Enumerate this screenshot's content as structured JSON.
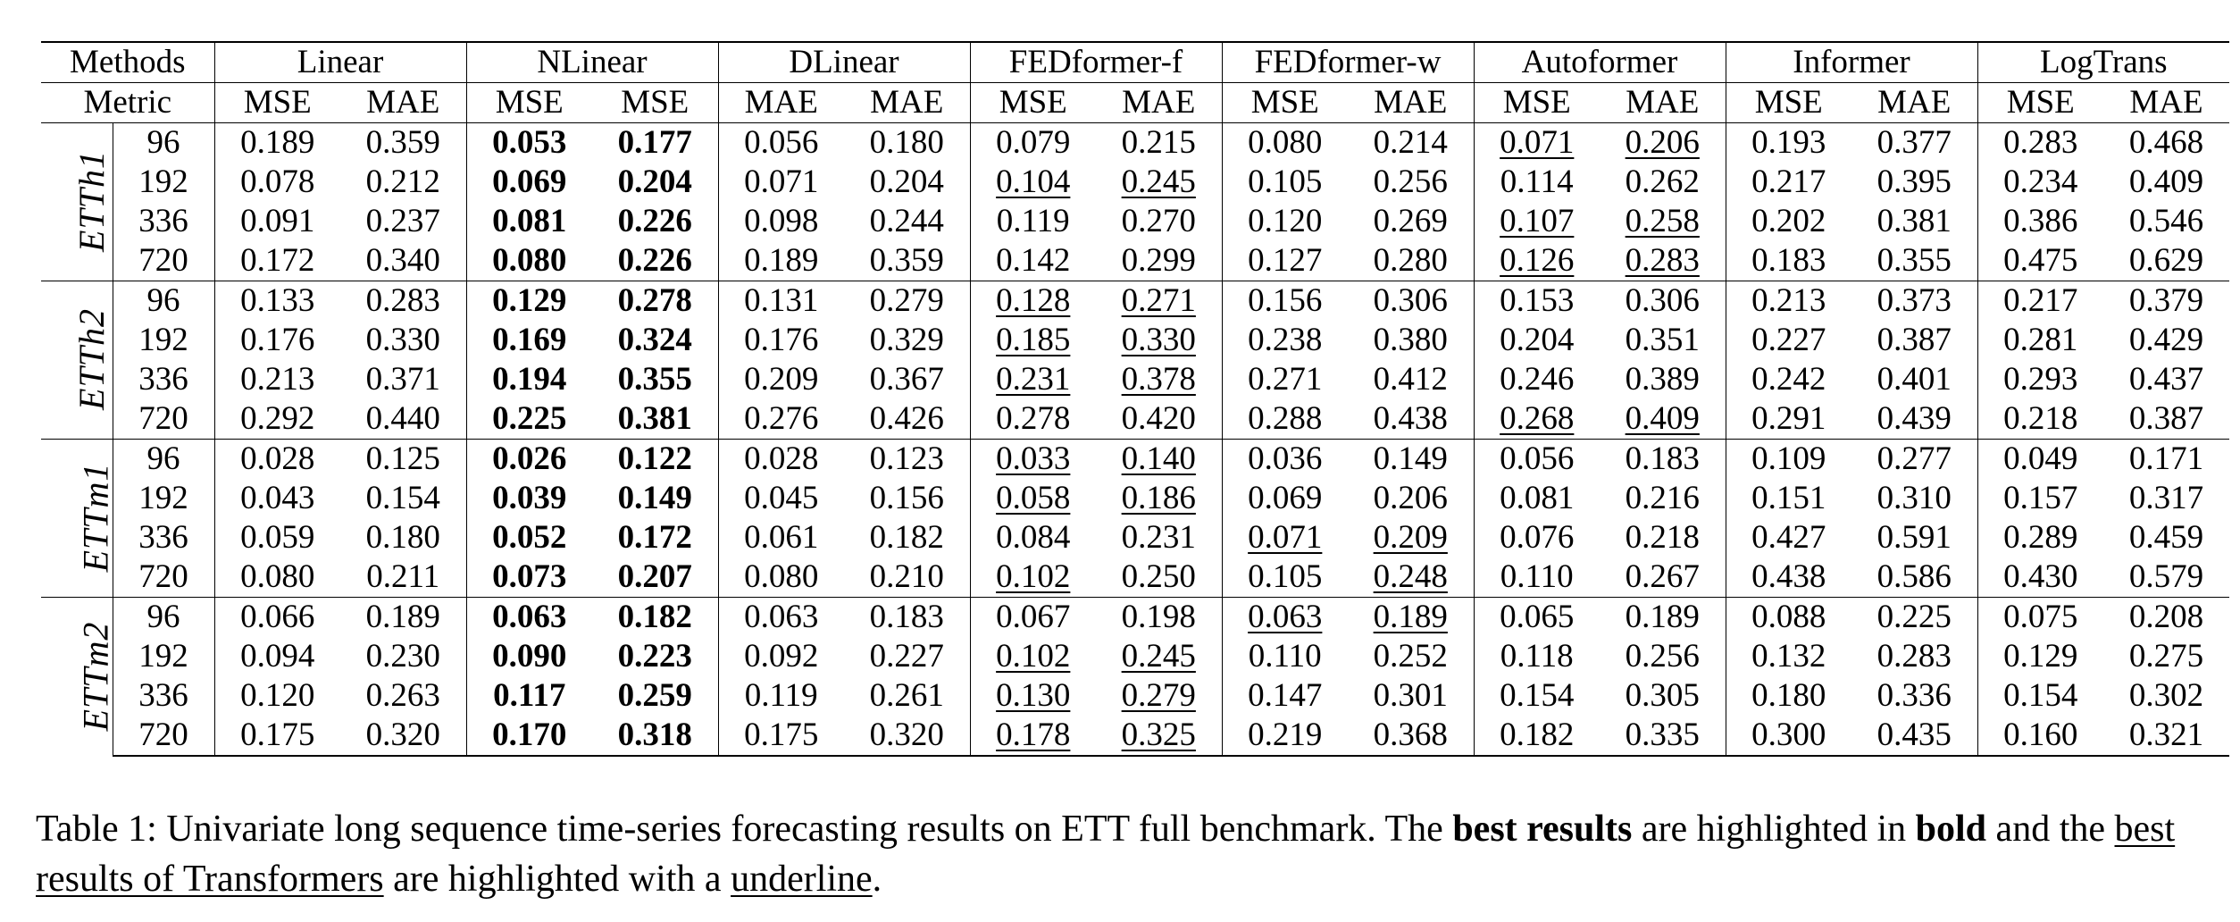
{
  "table": {
    "header": [
      "Methods",
      "Linear",
      "NLinear",
      "DLinear",
      "FEDformer-f",
      "FEDformer-w",
      "Autoformer",
      "Informer",
      "LogTrans"
    ],
    "metric_label": "Metric",
    "metrics": [
      "MSE",
      "MAE",
      "MSE",
      "MSE",
      "MAE",
      "MAE",
      "MSE",
      "MAE",
      "MSE",
      "MAE",
      "MSE",
      "MAE",
      "MSE",
      "MAE",
      "MSE",
      "MAE"
    ],
    "bold_columns": [
      2,
      3
    ],
    "groups": [
      {
        "name": "ETTh1",
        "rows": [
          {
            "horizon": "96",
            "values": [
              "0.189",
              "0.359",
              "0.053",
              "0.177",
              "0.056",
              "0.180",
              "0.079",
              "0.215",
              "0.080",
              "0.214",
              "0.071",
              "0.206",
              "0.193",
              "0.377",
              "0.283",
              "0.468"
            ],
            "underlined": [
              10,
              11
            ]
          },
          {
            "horizon": "192",
            "values": [
              "0.078",
              "0.212",
              "0.069",
              "0.204",
              "0.071",
              "0.204",
              "0.104",
              "0.245",
              "0.105",
              "0.256",
              "0.114",
              "0.262",
              "0.217",
              "0.395",
              "0.234",
              "0.409"
            ],
            "underlined": [
              6,
              7
            ]
          },
          {
            "horizon": "336",
            "values": [
              "0.091",
              "0.237",
              "0.081",
              "0.226",
              "0.098",
              "0.244",
              "0.119",
              "0.270",
              "0.120",
              "0.269",
              "0.107",
              "0.258",
              "0.202",
              "0.381",
              "0.386",
              "0.546"
            ],
            "underlined": [
              10,
              11
            ]
          },
          {
            "horizon": "720",
            "values": [
              "0.172",
              "0.340",
              "0.080",
              "0.226",
              "0.189",
              "0.359",
              "0.142",
              "0.299",
              "0.127",
              "0.280",
              "0.126",
              "0.283",
              "0.183",
              "0.355",
              "0.475",
              "0.629"
            ],
            "underlined": [
              10,
              11
            ]
          }
        ]
      },
      {
        "name": "ETTh2",
        "rows": [
          {
            "horizon": "96",
            "values": [
              "0.133",
              "0.283",
              "0.129",
              "0.278",
              "0.131",
              "0.279",
              "0.128",
              "0.271",
              "0.156",
              "0.306",
              "0.153",
              "0.306",
              "0.213",
              "0.373",
              "0.217",
              "0.379"
            ],
            "underlined": [
              6,
              7
            ]
          },
          {
            "horizon": "192",
            "values": [
              "0.176",
              "0.330",
              "0.169",
              "0.324",
              "0.176",
              "0.329",
              "0.185",
              "0.330",
              "0.238",
              "0.380",
              "0.204",
              "0.351",
              "0.227",
              "0.387",
              "0.281",
              "0.429"
            ],
            "underlined": [
              6,
              7
            ]
          },
          {
            "horizon": "336",
            "values": [
              "0.213",
              "0.371",
              "0.194",
              "0.355",
              "0.209",
              "0.367",
              "0.231",
              "0.378",
              "0.271",
              "0.412",
              "0.246",
              "0.389",
              "0.242",
              "0.401",
              "0.293",
              "0.437"
            ],
            "underlined": [
              6,
              7
            ]
          },
          {
            "horizon": "720",
            "values": [
              "0.292",
              "0.440",
              "0.225",
              "0.381",
              "0.276",
              "0.426",
              "0.278",
              "0.420",
              "0.288",
              "0.438",
              "0.268",
              "0.409",
              "0.291",
              "0.439",
              "0.218",
              "0.387"
            ],
            "underlined": [
              10,
              11
            ]
          }
        ]
      },
      {
        "name": "ETTm1",
        "rows": [
          {
            "horizon": "96",
            "values": [
              "0.028",
              "0.125",
              "0.026",
              "0.122",
              "0.028",
              "0.123",
              "0.033",
              "0.140",
              "0.036",
              "0.149",
              "0.056",
              "0.183",
              "0.109",
              "0.277",
              "0.049",
              "0.171"
            ],
            "underlined": [
              6,
              7
            ]
          },
          {
            "horizon": "192",
            "values": [
              "0.043",
              "0.154",
              "0.039",
              "0.149",
              "0.045",
              "0.156",
              "0.058",
              "0.186",
              "0.069",
              "0.206",
              "0.081",
              "0.216",
              "0.151",
              "0.310",
              "0.157",
              "0.317"
            ],
            "underlined": [
              6,
              7
            ]
          },
          {
            "horizon": "336",
            "values": [
              "0.059",
              "0.180",
              "0.052",
              "0.172",
              "0.061",
              "0.182",
              "0.084",
              "0.231",
              "0.071",
              "0.209",
              "0.076",
              "0.218",
              "0.427",
              "0.591",
              "0.289",
              "0.459"
            ],
            "underlined": [
              8,
              9
            ]
          },
          {
            "horizon": "720",
            "values": [
              "0.080",
              "0.211",
              "0.073",
              "0.207",
              "0.080",
              "0.210",
              "0.102",
              "0.250",
              "0.105",
              "0.248",
              "0.110",
              "0.267",
              "0.438",
              "0.586",
              "0.430",
              "0.579"
            ],
            "underlined": [
              6,
              9
            ]
          }
        ]
      },
      {
        "name": "ETTm2",
        "rows": [
          {
            "horizon": "96",
            "values": [
              "0.066",
              "0.189",
              "0.063",
              "0.182",
              "0.063",
              "0.183",
              "0.067",
              "0.198",
              "0.063",
              "0.189",
              "0.065",
              "0.189",
              "0.088",
              "0.225",
              "0.075",
              "0.208"
            ],
            "underlined": [
              8,
              9
            ]
          },
          {
            "horizon": "192",
            "values": [
              "0.094",
              "0.230",
              "0.090",
              "0.223",
              "0.092",
              "0.227",
              "0.102",
              "0.245",
              "0.110",
              "0.252",
              "0.118",
              "0.256",
              "0.132",
              "0.283",
              "0.129",
              "0.275"
            ],
            "underlined": [
              6,
              7
            ]
          },
          {
            "horizon": "336",
            "values": [
              "0.120",
              "0.263",
              "0.117",
              "0.259",
              "0.119",
              "0.261",
              "0.130",
              "0.279",
              "0.147",
              "0.301",
              "0.154",
              "0.305",
              "0.180",
              "0.336",
              "0.154",
              "0.302"
            ],
            "underlined": [
              6,
              7
            ]
          },
          {
            "horizon": "720",
            "values": [
              "0.175",
              "0.320",
              "0.170",
              "0.318",
              "0.175",
              "0.320",
              "0.178",
              "0.325",
              "0.219",
              "0.368",
              "0.182",
              "0.335",
              "0.300",
              "0.435",
              "0.160",
              "0.321"
            ],
            "underlined": [
              6,
              7
            ]
          }
        ]
      }
    ]
  },
  "caption": [
    {
      "text": "Table 1: Univariate long sequence time-series forecasting results on ETT full benchmark. The ",
      "style": "plain"
    },
    {
      "text": "best results",
      "style": "bold"
    },
    {
      "text": " are highlighted in ",
      "style": "plain"
    },
    {
      "text": "bold",
      "style": "bold"
    },
    {
      "text": " and the ",
      "style": "plain"
    },
    {
      "text": "best results of Transformers",
      "style": "underline"
    },
    {
      "text": " are highlighted with a ",
      "style": "plain"
    },
    {
      "text": "underline",
      "style": "underline"
    },
    {
      "text": ".",
      "style": "plain"
    }
  ]
}
